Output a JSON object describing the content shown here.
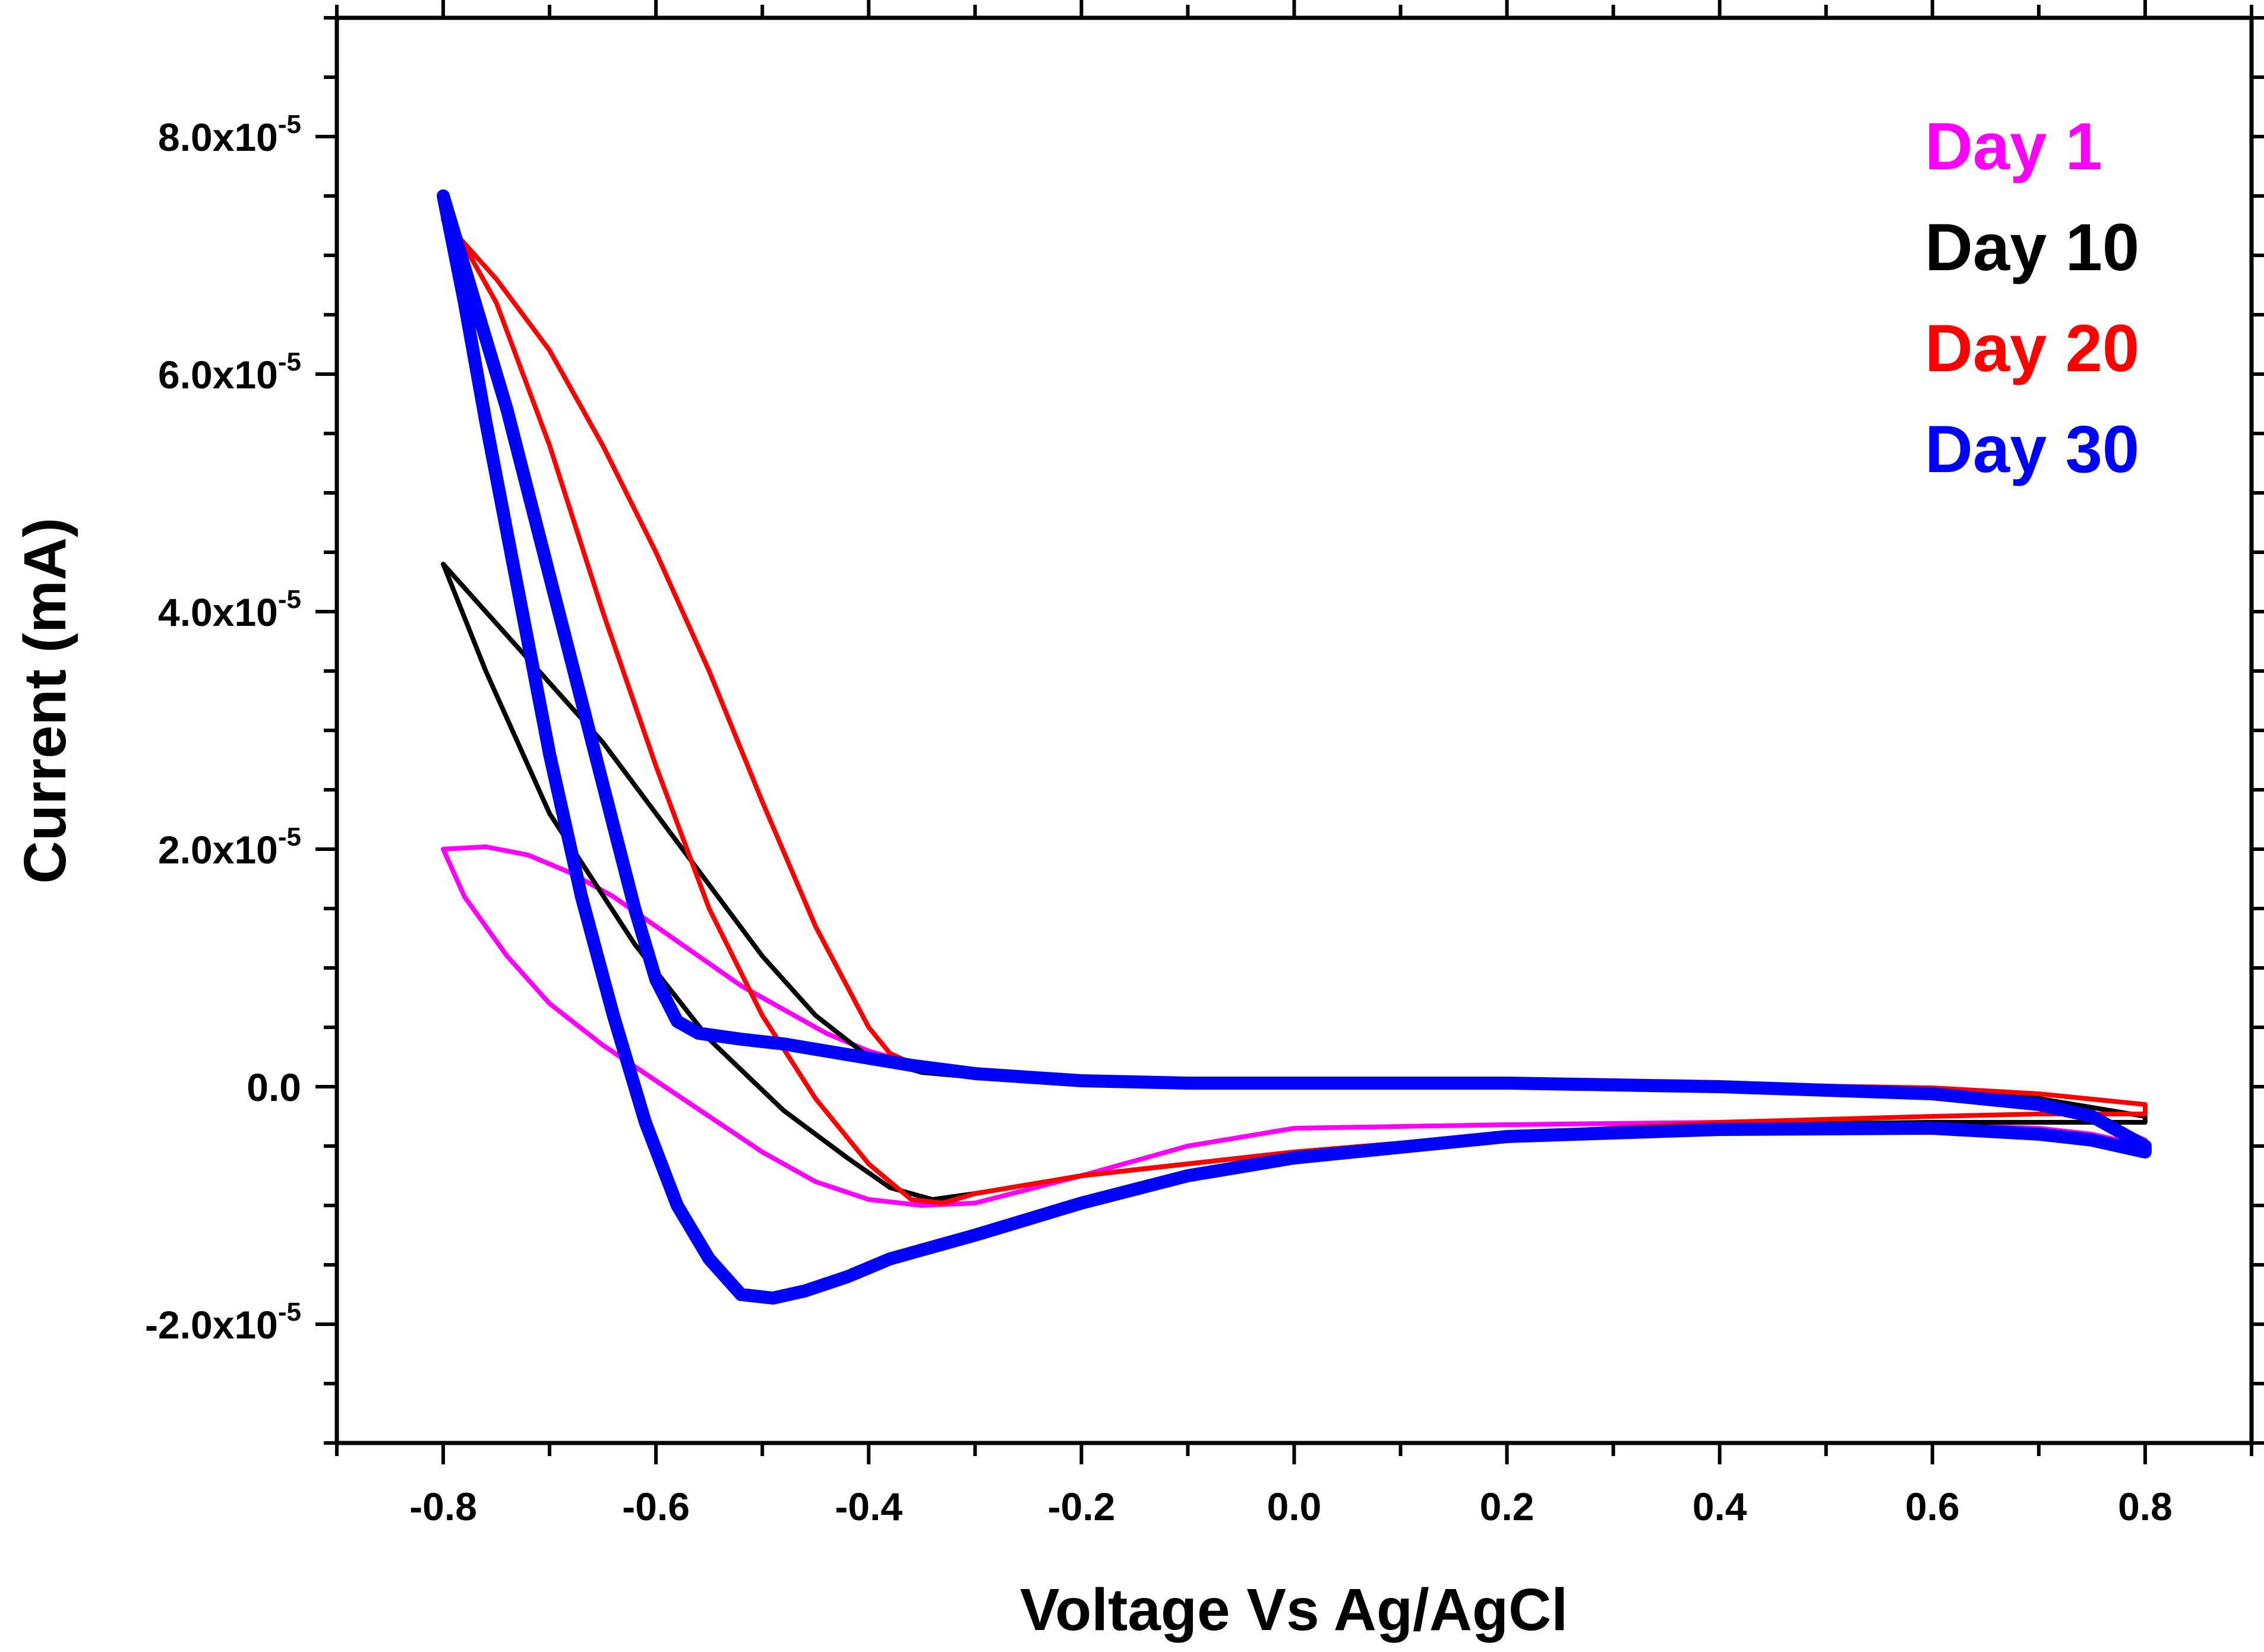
{
  "chart_data": {
    "type": "line",
    "title": "",
    "xlabel": "Voltage Vs Ag/AgCl",
    "ylabel": "Current (mA)",
    "xlim": [
      -0.9,
      0.9
    ],
    "ylim": [
      -3e-05,
      9e-05
    ],
    "x_ticks": [
      -0.8,
      -0.6,
      -0.4,
      -0.2,
      0.0,
      0.2,
      0.4,
      0.6,
      0.8
    ],
    "x_tick_labels": [
      "-0.8",
      "-0.6",
      "-0.4",
      "-0.2",
      "0.0",
      "0.2",
      "0.4",
      "0.6",
      "0.8"
    ],
    "y_ticks": [
      -2e-05,
      0.0,
      2e-05,
      4e-05,
      6e-05,
      8e-05
    ],
    "y_tick_labels": [
      {
        "mantissa": "-2.0x10",
        "exp": "-5"
      },
      {
        "mantissa": "0.0",
        "exp": ""
      },
      {
        "mantissa": "2.0x10",
        "exp": "-5"
      },
      {
        "mantissa": "4.0x10",
        "exp": "-5"
      },
      {
        "mantissa": "6.0x10",
        "exp": "-5"
      },
      {
        "mantissa": "8.0x10",
        "exp": "-5"
      }
    ],
    "legend_position": "top-right",
    "series": [
      {
        "name": "Day 1",
        "color": "#ff00ff",
        "stroke": "thin",
        "x": [
          -0.8,
          -0.76,
          -0.72,
          -0.68,
          -0.64,
          -0.6,
          -0.56,
          -0.52,
          -0.48,
          -0.44,
          -0.4,
          -0.36,
          -0.32,
          -0.28,
          -0.24,
          -0.2,
          -0.1,
          0.0,
          0.2,
          0.4,
          0.6,
          0.7,
          0.75,
          0.8,
          0.8,
          0.75,
          0.7,
          0.6,
          0.4,
          0.2,
          0.0,
          -0.1,
          -0.2,
          -0.3,
          -0.35,
          -0.4,
          -0.45,
          -0.5,
          -0.55,
          -0.6,
          -0.65,
          -0.7,
          -0.74,
          -0.78,
          -0.8
        ],
        "y": [
          2e-05,
          2.02e-05,
          1.95e-05,
          1.8e-05,
          1.6e-05,
          1.35e-05,
          1.1e-05,
          8.5e-06,
          6.5e-06,
          4.5e-06,
          3e-06,
          2e-06,
          1.3e-06,
          9e-07,
          6e-07,
          5e-07,
          4e-07,
          3e-07,
          2e-07,
          0.0,
          -5e-07,
          -1.5e-06,
          -2.5e-06,
          -4.5e-06,
          -5e-06,
          -4e-06,
          -3.5e-06,
          -3.2e-06,
          -3e-06,
          -3.2e-06,
          -3.5e-06,
          -5e-06,
          -7.5e-06,
          -9.8e-06,
          -1e-05,
          -9.5e-06,
          -8e-06,
          -5.5e-06,
          -2.5e-06,
          5e-07,
          3.5e-06,
          7e-06,
          1.1e-05,
          1.6e-05,
          2e-05
        ]
      },
      {
        "name": "Day 10",
        "color": "#000000",
        "stroke": "thin",
        "x": [
          -0.8,
          -0.75,
          -0.7,
          -0.65,
          -0.6,
          -0.55,
          -0.5,
          -0.45,
          -0.4,
          -0.35,
          -0.3,
          -0.2,
          -0.1,
          0.0,
          0.2,
          0.4,
          0.6,
          0.7,
          0.8,
          0.8,
          0.7,
          0.6,
          0.4,
          0.2,
          0.0,
          -0.1,
          -0.2,
          -0.3,
          -0.34,
          -0.38,
          -0.42,
          -0.48,
          -0.55,
          -0.62,
          -0.7,
          -0.76,
          -0.8
        ],
        "y": [
          4.4e-05,
          3.9e-05,
          3.4e-05,
          2.9e-05,
          2.3e-05,
          1.7e-05,
          1.1e-05,
          6e-06,
          2.5e-06,
          1.2e-06,
          8e-07,
          5e-07,
          4e-07,
          3e-07,
          3e-07,
          2e-07,
          -3e-07,
          -1e-06,
          -2.5e-06,
          -3e-06,
          -3e-06,
          -3e-06,
          -3.2e-06,
          -4e-06,
          -5.5e-06,
          -6.5e-06,
          -7.5e-06,
          -9e-06,
          -9.5e-06,
          -8.5e-06,
          -6e-06,
          -2e-06,
          4e-06,
          1.2e-05,
          2.3e-05,
          3.5e-05,
          4.4e-05
        ]
      },
      {
        "name": "Day 20",
        "color": "#ff0000",
        "stroke": "thin",
        "x": [
          -0.8,
          -0.75,
          -0.7,
          -0.65,
          -0.6,
          -0.55,
          -0.5,
          -0.45,
          -0.4,
          -0.38,
          -0.35,
          -0.3,
          -0.2,
          -0.1,
          0.0,
          0.2,
          0.4,
          0.6,
          0.7,
          0.8,
          0.8,
          0.7,
          0.6,
          0.4,
          0.2,
          0.0,
          -0.1,
          -0.2,
          -0.3,
          -0.33,
          -0.36,
          -0.4,
          -0.45,
          -0.5,
          -0.55,
          -0.6,
          -0.65,
          -0.7,
          -0.75,
          -0.8
        ],
        "y": [
          7.3e-05,
          6.8e-05,
          6.2e-05,
          5.4e-05,
          4.5e-05,
          3.5e-05,
          2.4e-05,
          1.35e-05,
          5e-06,
          2.8e-06,
          1.6e-06,
          1e-06,
          5e-07,
          3e-07,
          2e-07,
          3e-07,
          2e-07,
          -1e-07,
          -6e-07,
          -1.5e-06,
          -2.3e-06,
          -2.3e-06,
          -2.5e-06,
          -3e-06,
          -4e-06,
          -5.5e-06,
          -6.5e-06,
          -7.5e-06,
          -9e-06,
          -9.8e-06,
          -9.5e-06,
          -6.5e-06,
          -1e-06,
          6e-06,
          1.5e-05,
          2.7e-05,
          4e-05,
          5.4e-05,
          6.6e-05,
          7.4e-05
        ]
      },
      {
        "name": "Day 30",
        "color": "#0000ff",
        "stroke": "thick",
        "x": [
          -0.8,
          -0.78,
          -0.76,
          -0.74,
          -0.72,
          -0.7,
          -0.68,
          -0.66,
          -0.64,
          -0.62,
          -0.6,
          -0.58,
          -0.56,
          -0.52,
          -0.48,
          -0.44,
          -0.4,
          -0.36,
          -0.3,
          -0.2,
          -0.1,
          0.0,
          0.2,
          0.4,
          0.6,
          0.7,
          0.75,
          0.8,
          0.8,
          0.75,
          0.7,
          0.6,
          0.4,
          0.2,
          0.0,
          -0.1,
          -0.2,
          -0.3,
          -0.38,
          -0.42,
          -0.46,
          -0.49,
          -0.52,
          -0.55,
          -0.58,
          -0.61,
          -0.64,
          -0.67,
          -0.7,
          -0.73,
          -0.76,
          -0.78,
          -0.8
        ],
        "y": [
          7.5e-05,
          6.9e-05,
          6.3e-05,
          5.7e-05,
          5e-05,
          4.3e-05,
          3.6e-05,
          2.9e-05,
          2.2e-05,
          1.5e-05,
          9e-06,
          5.5e-06,
          4.5e-06,
          4e-06,
          3.6e-06,
          3e-06,
          2.4e-06,
          1.8e-06,
          1.1e-06,
          5e-07,
          3e-07,
          3e-07,
          3e-07,
          0.0,
          -6e-07,
          -1.5e-06,
          -2.5e-06,
          -5e-06,
          -5.5e-06,
          -4.5e-06,
          -4e-06,
          -3.5e-06,
          -3.6e-06,
          -4.2e-06,
          -6e-06,
          -7.5e-06,
          -9.8e-06,
          -1.25e-05,
          -1.45e-05,
          -1.6e-05,
          -1.72e-05,
          -1.78e-05,
          -1.75e-05,
          -1.45e-05,
          -1e-05,
          -3e-06,
          6e-06,
          1.6e-05,
          2.8e-05,
          4.2e-05,
          5.6e-05,
          6.6e-05,
          7.5e-05
        ]
      }
    ]
  }
}
